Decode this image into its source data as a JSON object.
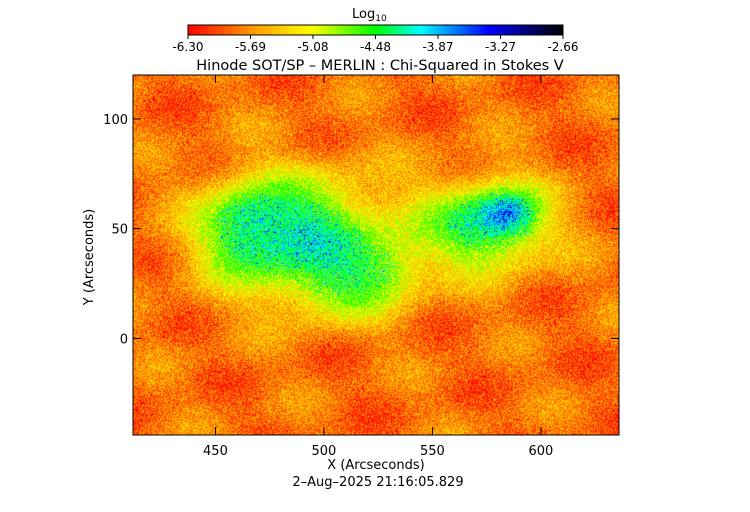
{
  "colorbar": {
    "label": "Log",
    "label_sub": "10",
    "ticks": [
      "-6.30",
      "-5.69",
      "-5.08",
      "-4.48",
      "-3.87",
      "-3.27",
      "-2.66"
    ],
    "range": [
      -6.3,
      -2.66
    ],
    "colors": [
      "#ff0000",
      "#ff9900",
      "#ffff00",
      "#00ff00",
      "#00ffff",
      "#0000ff",
      "#000000"
    ]
  },
  "chart_data": {
    "type": "heatmap",
    "title": "Hinode SOT/SP – MERLIN : Chi-Squared in Stokes V",
    "xlabel": "X (Arcseconds)",
    "ylabel": "Y (Arcseconds)",
    "xlim": [
      412,
      636
    ],
    "ylim": [
      -44,
      120
    ],
    "xticks": [
      450,
      500,
      550,
      600
    ],
    "yticks": [
      0,
      50,
      100
    ],
    "xtick_labels": [
      "450",
      "500",
      "550",
      "600"
    ],
    "ytick_labels": [
      "0",
      "50",
      "100"
    ],
    "value_range": [
      -6.3,
      -2.66
    ]
  },
  "footer": {
    "timestamp": "2–Aug–2025 21:16:05.829"
  }
}
